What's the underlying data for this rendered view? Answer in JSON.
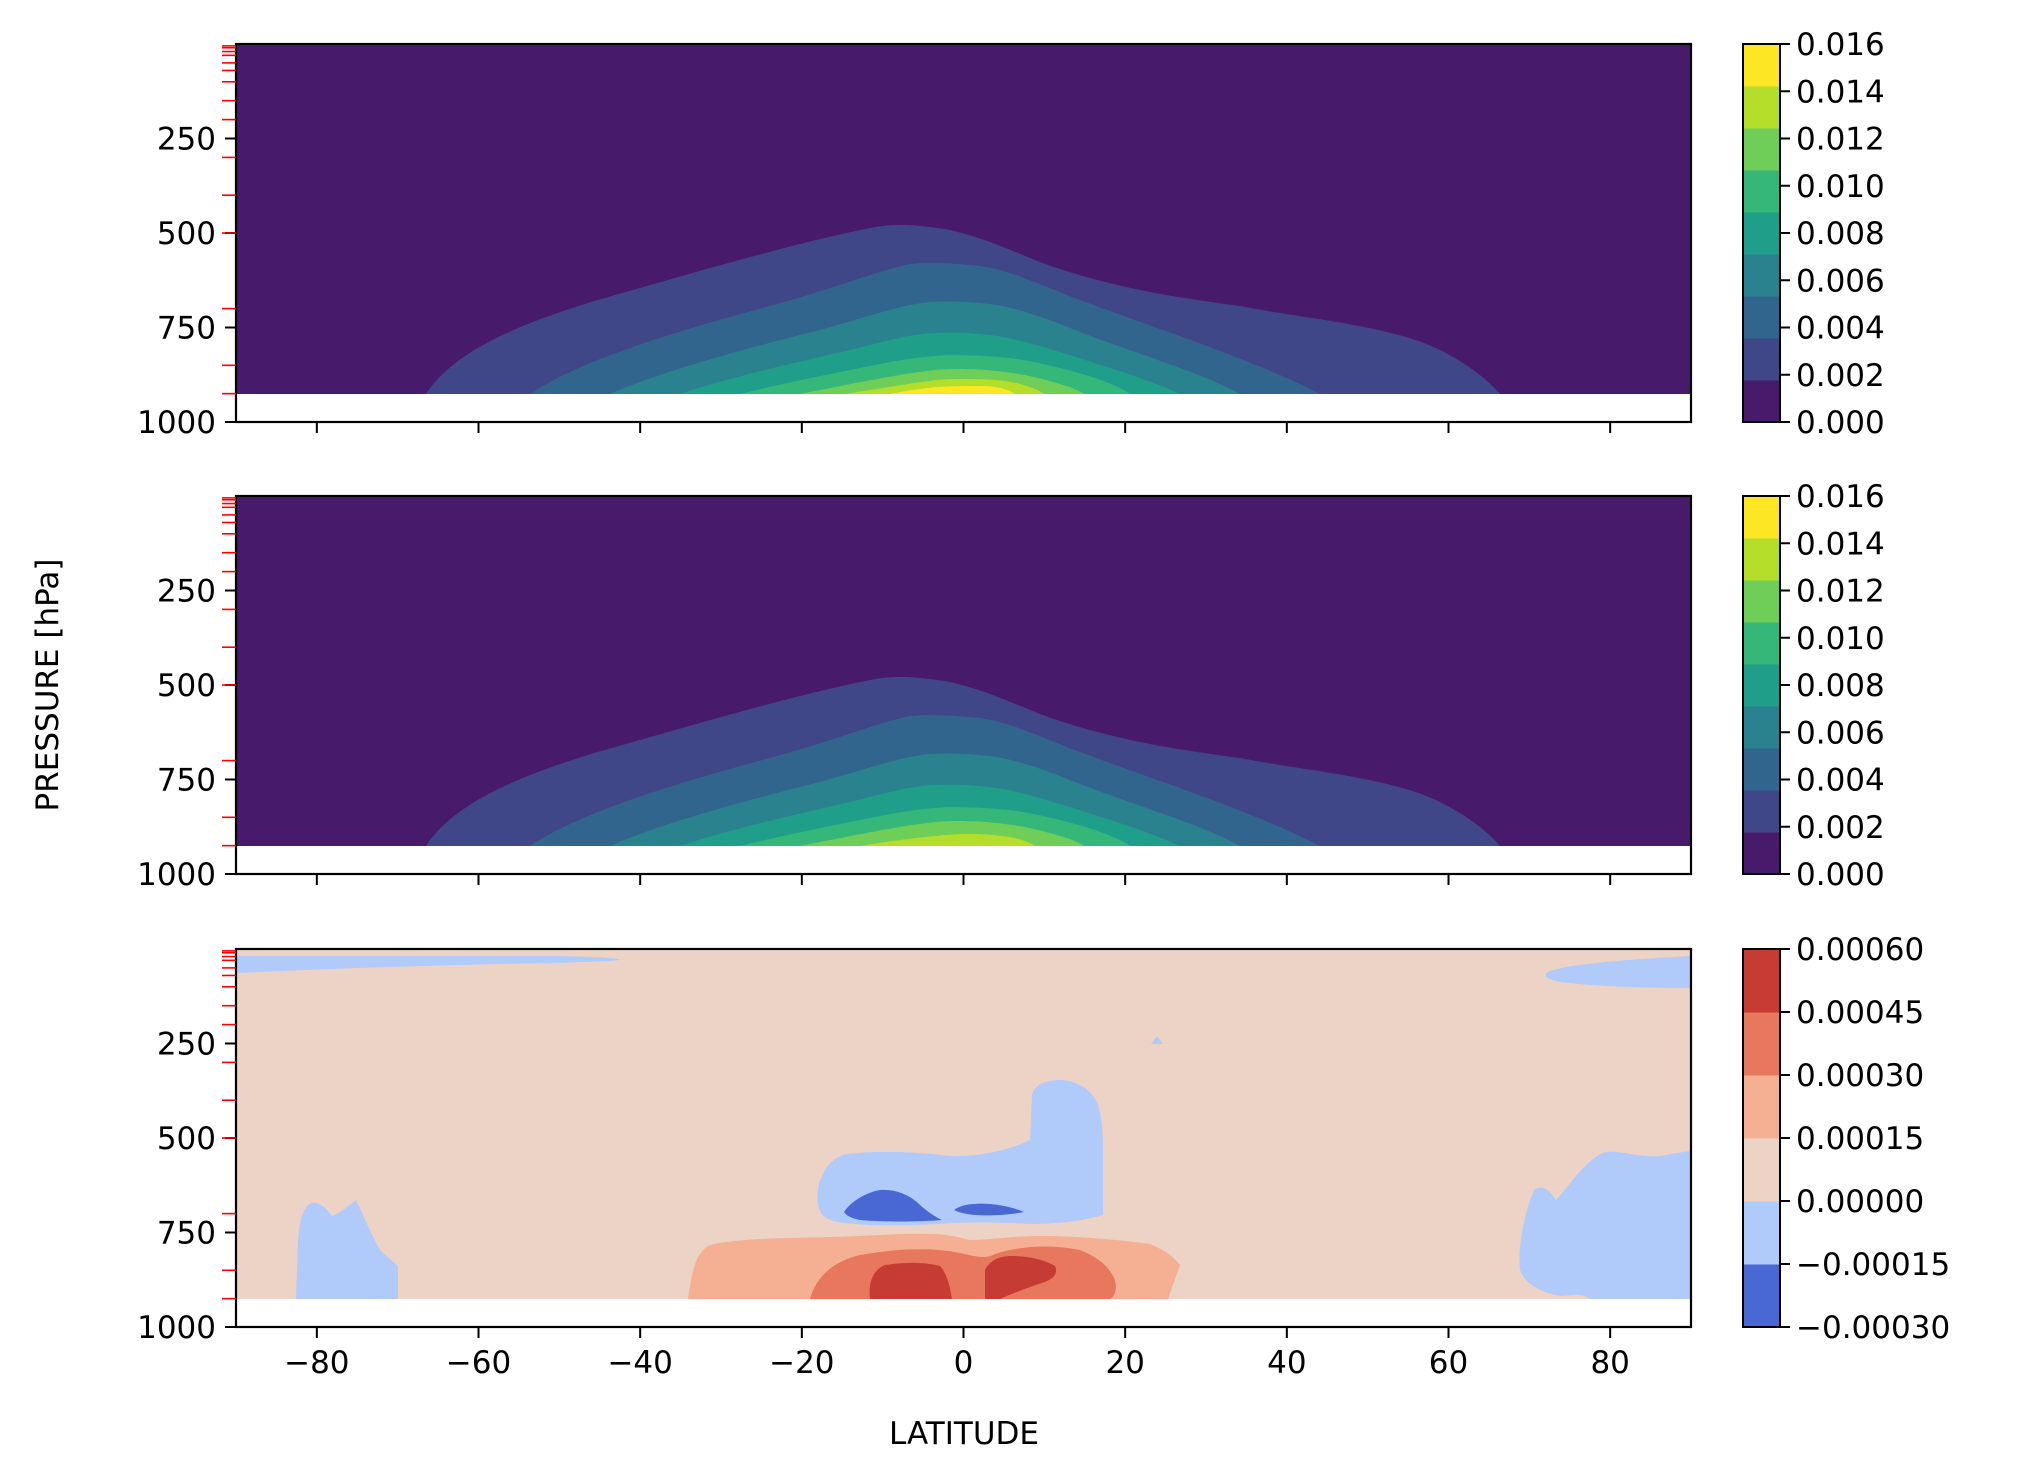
{
  "figure": {
    "ylabel": "PRESSURE [hPa]",
    "xlabel": "LATITUDE"
  },
  "chart_data": [
    {
      "type": "contour",
      "panel": "top",
      "x_ticks": [
        -80,
        -60,
        -40,
        -20,
        0,
        20,
        40,
        60,
        80
      ],
      "xlim": [
        -90,
        90
      ],
      "y_ticks": [
        250,
        500,
        750,
        1000
      ],
      "ylim": [
        1000,
        0
      ],
      "y_inverted": true,
      "colorbar_ticks": [
        "0.000",
        "0.002",
        "0.004",
        "0.006",
        "0.008",
        "0.010",
        "0.012",
        "0.014",
        "0.016"
      ],
      "levels": [
        0.0,
        0.002,
        0.004,
        0.006,
        0.008,
        0.01,
        0.012,
        0.014,
        0.016
      ],
      "colormap": "viridis",
      "colors": [
        "#481A6C",
        "#3F4788",
        "#32658E",
        "#29828E",
        "#1F9E89",
        "#35B779",
        "#6ECE58",
        "#B5DE2B",
        "#FDE725"
      ],
      "peak_value_approx": 0.0155,
      "peak_latitude_approx": -3,
      "lowest_level_hPa": 925
    },
    {
      "type": "contour",
      "panel": "middle",
      "x_ticks": [
        -80,
        -60,
        -40,
        -20,
        0,
        20,
        40,
        60,
        80
      ],
      "xlim": [
        -90,
        90
      ],
      "y_ticks": [
        250,
        500,
        750,
        1000
      ],
      "ylim": [
        1000,
        0
      ],
      "y_inverted": true,
      "colorbar_ticks": [
        "0.000",
        "0.002",
        "0.004",
        "0.006",
        "0.008",
        "0.010",
        "0.012",
        "0.014",
        "0.016"
      ],
      "levels": [
        0.0,
        0.002,
        0.004,
        0.006,
        0.008,
        0.01,
        0.012,
        0.014,
        0.016
      ],
      "colormap": "viridis",
      "colors": [
        "#481A6C",
        "#3F4788",
        "#32658E",
        "#29828E",
        "#1F9E89",
        "#35B779",
        "#6ECE58",
        "#B5DE2B",
        "#FDE725"
      ],
      "peak_value_approx": 0.0145,
      "peak_latitude_approx": -3,
      "lowest_level_hPa": 925
    },
    {
      "type": "contour",
      "panel": "bottom",
      "x_ticks": [
        -80,
        -60,
        -40,
        -20,
        0,
        20,
        40,
        60,
        80
      ],
      "xlim": [
        -90,
        90
      ],
      "y_ticks": [
        250,
        500,
        750,
        1000
      ],
      "ylim": [
        1000,
        0
      ],
      "y_inverted": true,
      "colorbar_ticks": [
        "0.00060",
        "0.00045",
        "0.00030",
        "0.00015",
        "0.00000",
        "−0.00015",
        "−0.00030"
      ],
      "levels": [
        -0.0003,
        -0.00015,
        0.0,
        0.00015,
        0.0003,
        0.00045,
        0.0006
      ],
      "colormap": "coolwarm",
      "colors": [
        "#4A68D4",
        "#B0CBFA",
        "#ECD3C6",
        "#F5B094",
        "#E7775D",
        "#C63B34"
      ],
      "lowest_level_hPa": 925
    }
  ],
  "pressure_level_markers_hPa": [
    5,
    10,
    20,
    30,
    50,
    70,
    100,
    150,
    200,
    300,
    400,
    500,
    700,
    850,
    925
  ]
}
